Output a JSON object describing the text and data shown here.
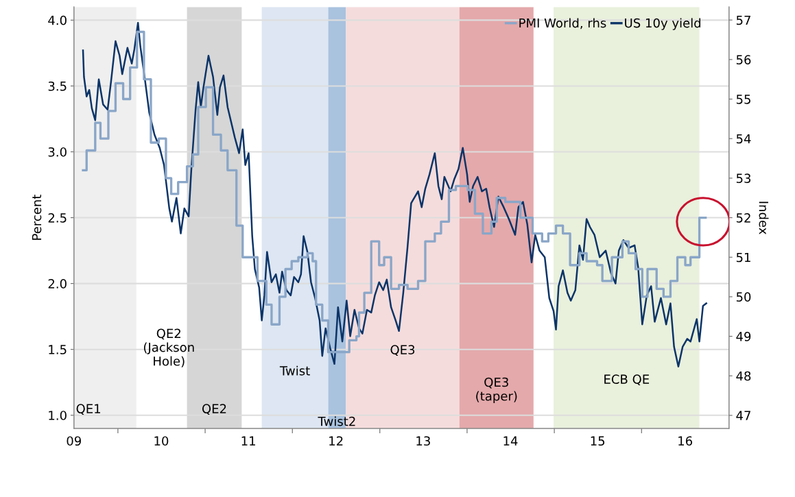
{
  "chart_data": {
    "type": "line",
    "ylabel": "Percent",
    "y2label": "Index",
    "xlim": [
      "2009-07-01",
      "2017-01-01"
    ],
    "xticks": [
      {
        "value": "2009-07-01",
        "label": "09"
      },
      {
        "value": "2010-01-01",
        "label": null
      },
      {
        "value": "2010-07-01",
        "label": "10"
      },
      {
        "value": "2011-01-01",
        "label": null
      },
      {
        "value": "2011-07-01",
        "label": "11"
      },
      {
        "value": "2012-01-01",
        "label": null
      },
      {
        "value": "2012-07-01",
        "label": "12"
      },
      {
        "value": "2013-01-01",
        "label": null
      },
      {
        "value": "2013-07-01",
        "label": "13"
      },
      {
        "value": "2014-01-01",
        "label": null
      },
      {
        "value": "2014-07-01",
        "label": "14"
      },
      {
        "value": "2015-01-01",
        "label": null
      },
      {
        "value": "2015-07-01",
        "label": "15"
      },
      {
        "value": "2016-01-01",
        "label": null
      },
      {
        "value": "2016-07-01",
        "label": "16"
      }
    ],
    "ylim": [
      0.9,
      4.1
    ],
    "yticks": [
      {
        "value": 1.0,
        "label": "1.0"
      },
      1.5,
      {
        "value": 2.0,
        "label": "2.0"
      },
      2.5,
      {
        "value": 3.0,
        "label": "3.0"
      },
      3.5,
      {
        "value": 4.0,
        "label": "4.0"
      }
    ],
    "y2lim": [
      46.67,
      57.33
    ],
    "y2ticks": [
      47,
      48,
      49,
      50,
      51,
      52,
      53,
      54,
      55,
      56,
      57
    ],
    "grid": "y",
    "legend": "top right",
    "series": [
      {
        "name": "PMI World, rhs",
        "type": "step",
        "axis": "y2",
        "color": "#8aa6c8",
        "x": [
          "2009-08-08",
          "2009-08-23",
          "2009-09-28",
          "2009-10-20",
          "2009-11-22",
          "2009-12-22",
          "2010-01-23",
          "2010-02-21",
          "2010-03-22",
          "2010-04-20",
          "2010-05-19",
          "2010-06-21",
          "2010-07-21",
          "2010-08-12",
          "2010-09-10",
          "2010-10-17",
          "2010-11-11",
          "2010-12-03",
          "2011-01-04",
          "2011-02-03",
          "2011-03-08",
          "2011-04-05",
          "2011-05-12",
          "2011-06-07",
          "2011-08-08",
          "2011-09-14",
          "2011-10-06",
          "2011-11-08",
          "2011-12-03",
          "2011-12-29",
          "2012-01-26",
          "2012-03-04",
          "2012-03-26",
          "2012-04-09",
          "2012-05-05",
          "2012-05-30",
          "2012-08-26",
          "2012-09-25",
          "2012-10-06",
          "2012-10-28",
          "2012-11-26",
          "2012-12-29",
          "2013-01-19",
          "2013-02-17",
          "2013-03-22",
          "2013-04-27",
          "2013-06-10",
          "2013-07-10",
          "2013-08-19",
          "2013-09-14",
          "2013-10-17",
          "2013-11-15",
          "2014-01-04",
          "2014-02-03",
          "2014-03-08",
          "2014-04-13",
          "2014-05-05",
          "2014-06-10",
          "2014-08-12",
          "2014-10-02",
          "2014-11-11",
          "2014-12-07",
          "2015-01-08",
          "2015-02-06",
          "2015-03-08",
          "2015-04-16",
          "2015-05-16",
          "2015-06-29",
          "2015-07-21",
          "2015-08-30",
          "2015-10-13",
          "2015-11-08",
          "2015-12-07",
          "2016-01-04",
          "2016-01-26",
          "2016-03-04",
          "2016-04-02",
          "2016-05-01",
          "2016-05-30",
          "2016-07-02",
          "2016-07-24",
          "2016-08-30",
          "2016-09-25"
        ],
        "values": [
          53.2,
          53.7,
          54.4,
          54.0,
          54.7,
          55.4,
          55.0,
          55.8,
          56.7,
          55.5,
          53.9,
          54.0,
          53.0,
          52.6,
          52.9,
          53.3,
          53.6,
          54.8,
          55.3,
          54.1,
          53.7,
          53.2,
          51.8,
          51.0,
          50.4,
          49.8,
          49.3,
          50.0,
          50.7,
          50.9,
          51.0,
          51.1,
          50.9,
          49.8,
          49.4,
          48.6,
          48.9,
          49.0,
          49.6,
          50.1,
          51.4,
          50.8,
          51.0,
          50.2,
          50.3,
          50.2,
          50.4,
          51.4,
          51.6,
          51.9,
          52.7,
          52.8,
          52.7,
          52.1,
          51.6,
          51.9,
          52.5,
          52.4,
          52.0,
          51.6,
          51.4,
          51.6,
          51.8,
          51.6,
          50.8,
          51.1,
          50.9,
          50.8,
          50.4,
          51.0,
          51.4,
          51.1,
          50.7,
          50.0,
          50.7,
          50.2,
          50.0,
          50.4,
          51.0,
          50.8,
          51.0,
          52.0,
          52.0
        ]
      },
      {
        "name": "US 10y yield",
        "color": "#0b3468",
        "x": [
          "2009-08-08",
          "2009-08-12",
          "2009-08-23",
          "2009-09-03",
          "2009-09-14",
          "2009-09-28",
          "2009-10-13",
          "2009-10-31",
          "2009-11-19",
          "2009-12-03",
          "2009-12-22",
          "2010-01-08",
          "2010-01-19",
          "2010-02-10",
          "2010-02-28",
          "2010-03-11",
          "2010-03-26",
          "2010-04-05",
          "2010-04-24",
          "2010-05-12",
          "2010-06-03",
          "2010-06-25",
          "2010-07-13",
          "2010-08-04",
          "2010-08-15",
          "2010-09-03",
          "2010-09-21",
          "2010-10-06",
          "2010-10-24",
          "2010-11-04",
          "2010-11-22",
          "2010-12-03",
          "2010-12-14",
          "2010-12-25",
          "2011-01-15",
          "2011-02-03",
          "2011-02-21",
          "2011-03-04",
          "2011-03-19",
          "2011-04-05",
          "2011-05-05",
          "2011-05-23",
          "2011-06-07",
          "2011-06-18",
          "2011-07-02",
          "2011-07-17",
          "2011-07-28",
          "2011-08-15",
          "2011-08-26",
          "2011-09-06",
          "2011-09-17",
          "2011-10-06",
          "2011-10-24",
          "2011-11-08",
          "2011-11-19",
          "2011-12-07",
          "2011-12-25",
          "2012-01-08",
          "2012-01-26",
          "2012-02-06",
          "2012-02-17",
          "2012-03-04",
          "2012-03-19",
          "2012-04-05",
          "2012-04-24",
          "2012-05-05",
          "2012-05-19",
          "2012-06-07",
          "2012-06-25",
          "2012-07-10",
          "2012-07-28",
          "2012-08-15",
          "2012-08-30",
          "2012-09-17",
          "2012-10-06",
          "2012-10-20",
          "2012-11-08",
          "2012-11-26",
          "2012-12-11",
          "2012-12-29",
          "2013-01-15",
          "2013-01-30",
          "2013-02-17",
          "2013-03-08",
          "2013-03-22",
          "2013-04-09",
          "2013-04-27",
          "2013-05-12",
          "2013-06-10",
          "2013-06-25",
          "2013-07-10",
          "2013-07-28",
          "2013-08-19",
          "2013-09-03",
          "2013-09-17",
          "2013-09-28",
          "2013-10-24",
          "2013-11-08",
          "2013-11-26",
          "2013-12-14",
          "2014-01-01",
          "2014-01-12",
          "2014-01-26",
          "2014-02-14",
          "2014-03-04",
          "2014-03-22",
          "2014-04-05",
          "2014-04-24",
          "2014-05-12",
          "2014-06-03",
          "2014-06-25",
          "2014-07-21",
          "2014-08-04",
          "2014-08-23",
          "2014-09-10",
          "2014-09-28",
          "2014-10-13",
          "2014-10-31",
          "2014-11-22",
          "2014-12-11",
          "2014-12-29",
          "2015-01-08",
          "2015-01-19",
          "2015-02-06",
          "2015-02-25",
          "2015-03-11",
          "2015-03-30",
          "2015-04-16",
          "2015-05-01",
          "2015-05-16",
          "2015-05-30",
          "2015-06-18",
          "2015-07-10",
          "2015-08-04",
          "2015-08-26",
          "2015-09-14",
          "2015-09-28",
          "2015-10-17",
          "2015-11-08",
          "2015-12-03",
          "2015-12-18",
          "2016-01-04",
          "2016-01-23",
          "2016-02-10",
          "2016-02-25",
          "2016-03-22",
          "2016-04-13",
          "2016-05-01",
          "2016-05-16",
          "2016-06-03",
          "2016-06-21",
          "2016-07-10",
          "2016-07-24",
          "2016-08-19",
          "2016-08-30",
          "2016-09-14",
          "2016-09-28"
        ],
        "values": [
          3.77,
          3.57,
          3.42,
          3.47,
          3.33,
          3.24,
          3.55,
          3.36,
          3.32,
          3.53,
          3.84,
          3.73,
          3.59,
          3.79,
          3.67,
          3.78,
          3.98,
          3.8,
          3.55,
          3.3,
          3.13,
          3.03,
          2.9,
          2.57,
          2.47,
          2.65,
          2.38,
          2.57,
          2.51,
          2.86,
          3.32,
          3.53,
          3.34,
          3.49,
          3.73,
          3.57,
          3.28,
          3.49,
          3.58,
          3.34,
          3.11,
          2.99,
          3.17,
          2.9,
          2.99,
          2.36,
          2.11,
          1.97,
          1.72,
          1.91,
          2.24,
          2.01,
          2.07,
          1.93,
          2.09,
          1.95,
          1.91,
          2.05,
          2.01,
          2.07,
          2.36,
          2.24,
          2.01,
          1.89,
          1.72,
          1.45,
          1.66,
          1.51,
          1.39,
          1.82,
          1.56,
          1.87,
          1.6,
          1.8,
          1.66,
          1.62,
          1.8,
          1.78,
          1.91,
          2.01,
          1.95,
          2.03,
          1.82,
          1.72,
          1.64,
          1.93,
          2.28,
          2.61,
          2.7,
          2.58,
          2.72,
          2.83,
          2.99,
          2.74,
          2.64,
          2.81,
          2.7,
          2.79,
          2.87,
          3.03,
          2.83,
          2.62,
          2.74,
          2.81,
          2.7,
          2.72,
          2.58,
          2.43,
          2.66,
          2.58,
          2.49,
          2.37,
          2.58,
          2.62,
          2.45,
          2.16,
          2.37,
          2.25,
          2.2,
          1.89,
          1.79,
          1.65,
          1.98,
          2.1,
          1.93,
          1.87,
          1.95,
          2.29,
          2.18,
          2.49,
          2.43,
          2.37,
          2.2,
          2.25,
          2.08,
          2.0,
          2.25,
          2.33,
          2.27,
          2.29,
          2.12,
          1.69,
          1.91,
          1.98,
          1.71,
          1.89,
          1.69,
          1.85,
          1.52,
          1.37,
          1.52,
          1.58,
          1.56,
          1.73,
          1.56,
          1.83,
          1.85
        ]
      }
    ],
    "bands": [
      {
        "axis": "x",
        "from": "2009-07-01",
        "to": "2010-03-19",
        "label": "QE1",
        "color": "#efefef"
      },
      {
        "axis": "x",
        "from": "2010-10-17",
        "to": "2011-06-03",
        "label": "QE2",
        "color": "#d6d6d6"
      },
      {
        "axis": "x",
        "from": "2011-08-26",
        "to": "2012-05-30",
        "label": "Twist",
        "color": "#dde6f2"
      },
      {
        "axis": "x",
        "from": "2012-05-30",
        "to": "2012-08-12",
        "label": "Twist2",
        "color": "#a9c2de"
      },
      {
        "axis": "x",
        "from": "2012-08-12",
        "to": "2013-11-30",
        "label": "QE3",
        "color": "#f5dcdc"
      },
      {
        "axis": "x",
        "from": "2013-11-30",
        "to": "2014-10-06",
        "label": "QE3\n(taper)",
        "color": "#e4a9ab"
      },
      {
        "axis": "x",
        "from": "2014-12-29",
        "to": "2016-08-30",
        "label": "ECB QE",
        "color": "#e9f0dc"
      }
    ],
    "annotations": [
      "QE2\n(Jackson\nHole)"
    ]
  }
}
